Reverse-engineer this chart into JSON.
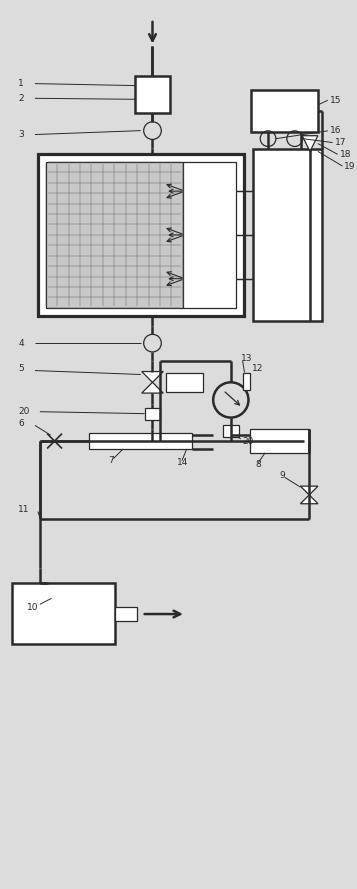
{
  "fig_width": 3.57,
  "fig_height": 8.89,
  "dpi": 100,
  "bg_color": "#dcdcdc",
  "line_color": "#2a2a2a",
  "lw_main": 1.8,
  "lw_thin": 0.9,
  "lw_label": 0.7
}
